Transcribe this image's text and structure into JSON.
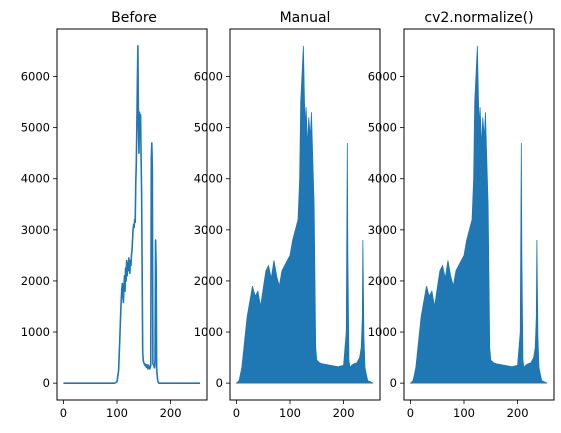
{
  "colors": {
    "series": "#1f77b4",
    "axes": "#000000",
    "background": "#ffffff"
  },
  "chart_data": [
    {
      "type": "line",
      "title": "Before",
      "xlabel": "",
      "ylabel": "",
      "xlim": [
        -12,
        268
      ],
      "ylim": [
        -330,
        6930
      ],
      "xticks": [
        0,
        100,
        200
      ],
      "yticks": [
        0,
        1000,
        2000,
        3000,
        4000,
        5000,
        6000
      ],
      "grid": false,
      "series": [
        {
          "x": [
            0,
            96,
            100,
            103,
            105,
            106,
            107,
            108,
            109,
            110,
            111,
            112,
            113,
            114,
            115,
            116,
            117,
            118,
            119,
            120,
            121,
            122,
            123,
            124,
            125,
            126,
            127,
            128,
            129,
            130,
            131,
            132,
            133,
            134,
            135,
            136,
            137,
            138,
            139,
            140,
            141,
            142,
            143,
            144,
            145,
            146,
            147,
            148,
            149,
            150,
            151,
            152,
            153,
            154,
            155,
            156,
            157,
            158,
            159,
            160,
            161,
            162,
            163,
            164,
            165,
            166,
            167,
            168,
            169,
            170,
            171,
            172,
            173,
            174,
            175,
            176,
            177,
            178,
            179,
            180,
            181,
            182,
            183,
            184,
            185,
            186,
            187,
            188,
            189,
            190,
            200,
            255
          ],
          "y": [
            0,
            0,
            30,
            250,
            800,
            1100,
            1400,
            1650,
            1850,
            1950,
            1700,
            1580,
            1900,
            2100,
            1800,
            2250,
            2000,
            2400,
            2100,
            2350,
            2200,
            2450,
            2300,
            2150,
            2400,
            2300,
            2500,
            2600,
            2800,
            3000,
            3100,
            3050,
            3200,
            3150,
            3900,
            4300,
            5000,
            5900,
            6600,
            5100,
            4500,
            5300,
            5000,
            5250,
            4400,
            3700,
            2100,
            600,
            450,
            400,
            380,
            350,
            370,
            330,
            310,
            360,
            300,
            280,
            350,
            320,
            280,
            300,
            350,
            4400,
            4700,
            4150,
            380,
            360,
            340,
            300,
            420,
            2800,
            2300,
            300,
            150,
            50,
            20,
            0,
            0,
            0,
            0,
            0,
            0,
            0,
            0,
            0,
            0,
            0,
            0,
            0,
            0,
            0
          ]
        }
      ]
    },
    {
      "type": "bar",
      "title": "Manual",
      "xlabel": "",
      "ylabel": "",
      "xlim": [
        -12,
        268
      ],
      "ylim": [
        -330,
        6930
      ],
      "xticks": [
        0,
        100,
        200
      ],
      "yticks": [
        0,
        1000,
        2000,
        3000,
        4000,
        5000,
        6000
      ],
      "grid": false,
      "series": [
        {
          "x": [
            0,
            5,
            10,
            15,
            20,
            25,
            30,
            35,
            40,
            45,
            50,
            55,
            60,
            65,
            70,
            75,
            80,
            85,
            90,
            95,
            100,
            105,
            110,
            115,
            118,
            120,
            125,
            128,
            130,
            133,
            135,
            138,
            140,
            143,
            145,
            148,
            150,
            155,
            160,
            170,
            180,
            190,
            200,
            205,
            207,
            208,
            210,
            212,
            215,
            220,
            225,
            230,
            233,
            235,
            236,
            238,
            240,
            245,
            255
          ],
          "y": [
            0,
            50,
            300,
            800,
            1300,
            1600,
            1900,
            1700,
            1800,
            1500,
            1850,
            2200,
            2300,
            2050,
            2400,
            2100,
            1900,
            2200,
            2300,
            2400,
            2500,
            2800,
            3000,
            3200,
            4000,
            5500,
            6600,
            5000,
            5400,
            4600,
            5200,
            4800,
            5300,
            4200,
            3500,
            700,
            450,
            400,
            380,
            360,
            340,
            320,
            350,
            1000,
            4700,
            2500,
            450,
            300,
            350,
            380,
            400,
            500,
            700,
            1300,
            2800,
            900,
            300,
            50,
            0
          ]
        }
      ]
    },
    {
      "type": "bar",
      "title": "cv2.normalize()",
      "xlabel": "",
      "ylabel": "",
      "xlim": [
        -12,
        268
      ],
      "ylim": [
        -330,
        6930
      ],
      "xticks": [
        0,
        100,
        200
      ],
      "yticks": [
        0,
        1000,
        2000,
        3000,
        4000,
        5000,
        6000
      ],
      "grid": false,
      "series": [
        {
          "x": [
            0,
            5,
            10,
            15,
            20,
            25,
            30,
            35,
            40,
            45,
            50,
            55,
            60,
            65,
            70,
            75,
            80,
            85,
            90,
            95,
            100,
            105,
            110,
            115,
            118,
            120,
            125,
            128,
            130,
            133,
            135,
            138,
            140,
            143,
            145,
            148,
            150,
            155,
            160,
            170,
            180,
            190,
            200,
            205,
            207,
            208,
            210,
            212,
            215,
            220,
            225,
            230,
            233,
            235,
            236,
            238,
            240,
            245,
            255
          ],
          "y": [
            0,
            50,
            300,
            800,
            1300,
            1600,
            1900,
            1700,
            1800,
            1500,
            1850,
            2200,
            2300,
            2050,
            2400,
            2100,
            1900,
            2200,
            2300,
            2400,
            2500,
            2800,
            3000,
            3200,
            4000,
            5500,
            6600,
            5000,
            5400,
            4600,
            5200,
            4800,
            5300,
            4200,
            3500,
            700,
            450,
            400,
            380,
            360,
            340,
            320,
            350,
            1000,
            4700,
            2500,
            450,
            300,
            350,
            380,
            400,
            500,
            700,
            1300,
            2800,
            900,
            300,
            50,
            0
          ]
        }
      ]
    }
  ]
}
